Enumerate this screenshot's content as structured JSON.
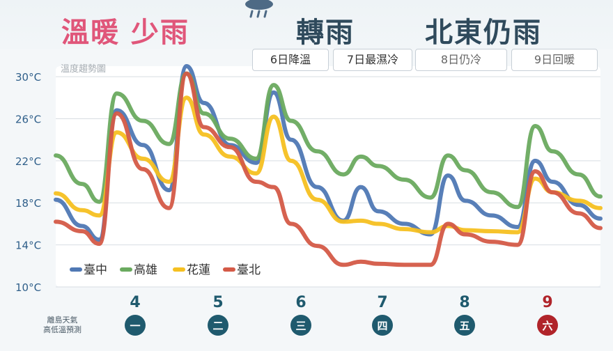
{
  "header": {
    "left_headline": "溫暖 少雨",
    "mid_headline": "轉雨",
    "right_headline": "北東仍雨",
    "left_color": "#e0567a",
    "mid_color": "#2f4a5c",
    "right_color": "#2f4a5c"
  },
  "events": [
    {
      "label": "6日降溫"
    },
    {
      "label": "7日最濕冷"
    },
    {
      "label": "8日仍冷"
    },
    {
      "label": "9日回暖"
    }
  ],
  "chart_data": {
    "type": "line",
    "title": "溫度趨勢圖",
    "y_ticks": [
      "30°C",
      "26°C",
      "22°C",
      "18°C",
      "14°C",
      "10°C"
    ],
    "ylim": [
      10,
      31
    ],
    "x_day_labels": [
      "4",
      "5",
      "6",
      "7",
      "8",
      "9"
    ],
    "x_weekday_labels": [
      "一",
      "二",
      "三",
      "四",
      "五",
      "六"
    ],
    "weekend_color": "#b0242a",
    "weekday_color": "#1f5a6e",
    "x": [
      3.5,
      3.8,
      4.0,
      4.2,
      4.5,
      4.8,
      5.0,
      5.2,
      5.5,
      5.8,
      6.0,
      6.2,
      6.5,
      6.8,
      7.0,
      7.2,
      7.5,
      7.8,
      8.0,
      8.2,
      8.5,
      8.8,
      9.0,
      9.2,
      9.5,
      9.75
    ],
    "series": [
      {
        "name": "臺中",
        "color": "#4f78b4",
        "values": [
          18.3,
          15.8,
          14.5,
          26.8,
          23.5,
          19.2,
          31.0,
          27.5,
          23.5,
          21.8,
          28.5,
          24.0,
          19.5,
          16.3,
          19.5,
          17.2,
          16.0,
          15.0,
          20.6,
          18.2,
          16.8,
          15.7,
          22.0,
          20.0,
          17.8,
          16.5
        ]
      },
      {
        "name": "高雄",
        "color": "#6aaa5f",
        "values": [
          22.5,
          19.8,
          18.1,
          28.4,
          25.8,
          23.6,
          30.3,
          26.5,
          24.1,
          22.2,
          29.2,
          25.8,
          22.9,
          20.7,
          22.4,
          21.5,
          20.2,
          18.5,
          22.5,
          21.1,
          19.0,
          17.6,
          25.3,
          22.9,
          20.7,
          18.6
        ]
      },
      {
        "name": "花蓮",
        "color": "#f5c021",
        "values": [
          18.9,
          17.3,
          16.8,
          24.7,
          22.2,
          20.0,
          28.0,
          24.5,
          22.4,
          20.8,
          26.2,
          22.0,
          18.3,
          16.2,
          16.3,
          16.0,
          15.5,
          15.2,
          15.8,
          15.4,
          15.3,
          15.2,
          20.3,
          19.0,
          18.2,
          17.5
        ]
      },
      {
        "name": "臺北",
        "color": "#d45a47",
        "values": [
          16.2,
          15.3,
          14.1,
          26.5,
          21.2,
          17.5,
          30.3,
          25.2,
          23.3,
          20.0,
          19.5,
          16.0,
          13.9,
          12.1,
          12.4,
          12.2,
          12.1,
          12.1,
          16.0,
          15.0,
          14.3,
          14.0,
          21.0,
          19.0,
          17.0,
          15.6
        ]
      }
    ],
    "legend": "bottom-left",
    "grid": true
  },
  "islands_label_line1": "離島天氣",
  "islands_label_line2": "高低溫預測"
}
